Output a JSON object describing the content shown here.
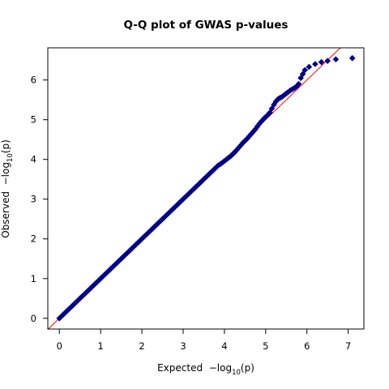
{
  "chart_data": {
    "type": "scatter",
    "title": "Q-Q plot of GWAS p-values",
    "xlabel": {
      "prefix": "Expected  ",
      "log": "−log",
      "sub": "10",
      "var": "(p)"
    },
    "ylabel": {
      "prefix": "Observed  ",
      "log": "−log",
      "sub": "10",
      "var": "(p)"
    },
    "xlim": [
      -0.28,
      7.38
    ],
    "ylim": [
      -0.27,
      6.81
    ],
    "xticks": [
      "0",
      "1",
      "2",
      "3",
      "4",
      "5",
      "6",
      "7"
    ],
    "yticks": [
      "0",
      "1",
      "2",
      "3",
      "4",
      "5",
      "6"
    ],
    "reference_line": {
      "slope": 1,
      "intercept": 0,
      "color": "#ff0000"
    },
    "point_fill": "#00008b",
    "point_stroke": "#000080",
    "series": [
      {
        "points": [
          [
            0.0,
            0.0
          ],
          [
            0.05,
            0.05
          ],
          [
            0.1,
            0.1
          ],
          [
            0.15,
            0.15
          ],
          [
            0.2,
            0.2
          ],
          [
            0.25,
            0.25
          ],
          [
            0.3,
            0.3
          ],
          [
            0.35,
            0.35
          ],
          [
            0.4,
            0.4
          ],
          [
            0.45,
            0.45
          ],
          [
            0.5,
            0.5
          ],
          [
            0.55,
            0.55
          ],
          [
            0.6,
            0.6
          ],
          [
            0.65,
            0.65
          ],
          [
            0.7,
            0.7
          ],
          [
            0.75,
            0.75
          ],
          [
            0.8,
            0.8
          ],
          [
            0.85,
            0.85
          ],
          [
            0.9,
            0.9
          ],
          [
            0.95,
            0.95
          ],
          [
            1.0,
            1.0
          ],
          [
            1.05,
            1.05
          ],
          [
            1.1,
            1.1
          ],
          [
            1.15,
            1.15
          ],
          [
            1.2,
            1.2
          ],
          [
            1.25,
            1.25
          ],
          [
            1.3,
            1.3
          ],
          [
            1.35,
            1.35
          ],
          [
            1.4,
            1.4
          ],
          [
            1.45,
            1.45
          ],
          [
            1.5,
            1.5
          ],
          [
            1.55,
            1.55
          ],
          [
            1.6,
            1.6
          ],
          [
            1.65,
            1.65
          ],
          [
            1.7,
            1.7
          ],
          [
            1.75,
            1.75
          ],
          [
            1.8,
            1.8
          ],
          [
            1.85,
            1.85
          ],
          [
            1.9,
            1.9
          ],
          [
            1.95,
            1.95
          ],
          [
            2.0,
            2.0
          ],
          [
            2.05,
            2.05
          ],
          [
            2.1,
            2.1
          ],
          [
            2.15,
            2.15
          ],
          [
            2.2,
            2.2
          ],
          [
            2.25,
            2.25
          ],
          [
            2.3,
            2.3
          ],
          [
            2.35,
            2.35
          ],
          [
            2.4,
            2.4
          ],
          [
            2.45,
            2.45
          ],
          [
            2.5,
            2.5
          ],
          [
            2.55,
            2.55
          ],
          [
            2.6,
            2.6
          ],
          [
            2.65,
            2.65
          ],
          [
            2.7,
            2.7
          ],
          [
            2.75,
            2.75
          ],
          [
            2.8,
            2.8
          ],
          [
            2.85,
            2.85
          ],
          [
            2.9,
            2.9
          ],
          [
            2.95,
            2.95
          ],
          [
            3.0,
            3.0
          ],
          [
            3.05,
            3.05
          ],
          [
            3.1,
            3.1
          ],
          [
            3.15,
            3.15
          ],
          [
            3.2,
            3.2
          ],
          [
            3.25,
            3.25
          ],
          [
            3.3,
            3.3
          ],
          [
            3.35,
            3.35
          ],
          [
            3.4,
            3.4
          ],
          [
            3.45,
            3.45
          ],
          [
            3.5,
            3.5
          ],
          [
            3.55,
            3.55
          ],
          [
            3.6,
            3.6
          ],
          [
            3.65,
            3.65
          ],
          [
            3.7,
            3.7
          ],
          [
            3.75,
            3.75
          ],
          [
            3.8,
            3.8
          ],
          [
            3.85,
            3.85
          ],
          [
            3.9,
            3.88
          ],
          [
            3.95,
            3.92
          ],
          [
            4.0,
            3.96
          ],
          [
            4.05,
            4.0
          ],
          [
            4.1,
            4.04
          ],
          [
            4.15,
            4.08
          ],
          [
            4.2,
            4.13
          ],
          [
            4.25,
            4.18
          ],
          [
            4.3,
            4.24
          ],
          [
            4.35,
            4.3
          ],
          [
            4.4,
            4.36
          ],
          [
            4.45,
            4.42
          ],
          [
            4.5,
            4.47
          ],
          [
            4.55,
            4.52
          ],
          [
            4.6,
            4.58
          ],
          [
            4.65,
            4.64
          ],
          [
            4.7,
            4.7
          ],
          [
            4.75,
            4.76
          ],
          [
            4.8,
            4.83
          ],
          [
            4.85,
            4.9
          ],
          [
            4.9,
            4.96
          ],
          [
            4.95,
            5.02
          ],
          [
            5.0,
            5.07
          ],
          [
            5.05,
            5.12
          ],
          [
            5.1,
            5.18
          ],
          [
            5.15,
            5.28
          ],
          [
            5.2,
            5.38
          ],
          [
            5.25,
            5.46
          ],
          [
            5.3,
            5.52
          ],
          [
            5.35,
            5.55
          ],
          [
            5.4,
            5.58
          ],
          [
            5.45,
            5.62
          ],
          [
            5.5,
            5.66
          ],
          [
            5.55,
            5.7
          ],
          [
            5.6,
            5.74
          ],
          [
            5.65,
            5.77
          ],
          [
            5.7,
            5.8
          ],
          [
            5.75,
            5.84
          ],
          [
            5.8,
            5.9
          ],
          [
            5.85,
            6.05
          ],
          [
            5.9,
            6.15
          ],
          [
            5.95,
            6.25
          ],
          [
            6.05,
            6.33
          ],
          [
            6.2,
            6.4
          ],
          [
            6.35,
            6.45
          ],
          [
            6.5,
            6.48
          ],
          [
            6.7,
            6.52
          ],
          [
            7.1,
            6.55
          ]
        ]
      }
    ]
  }
}
